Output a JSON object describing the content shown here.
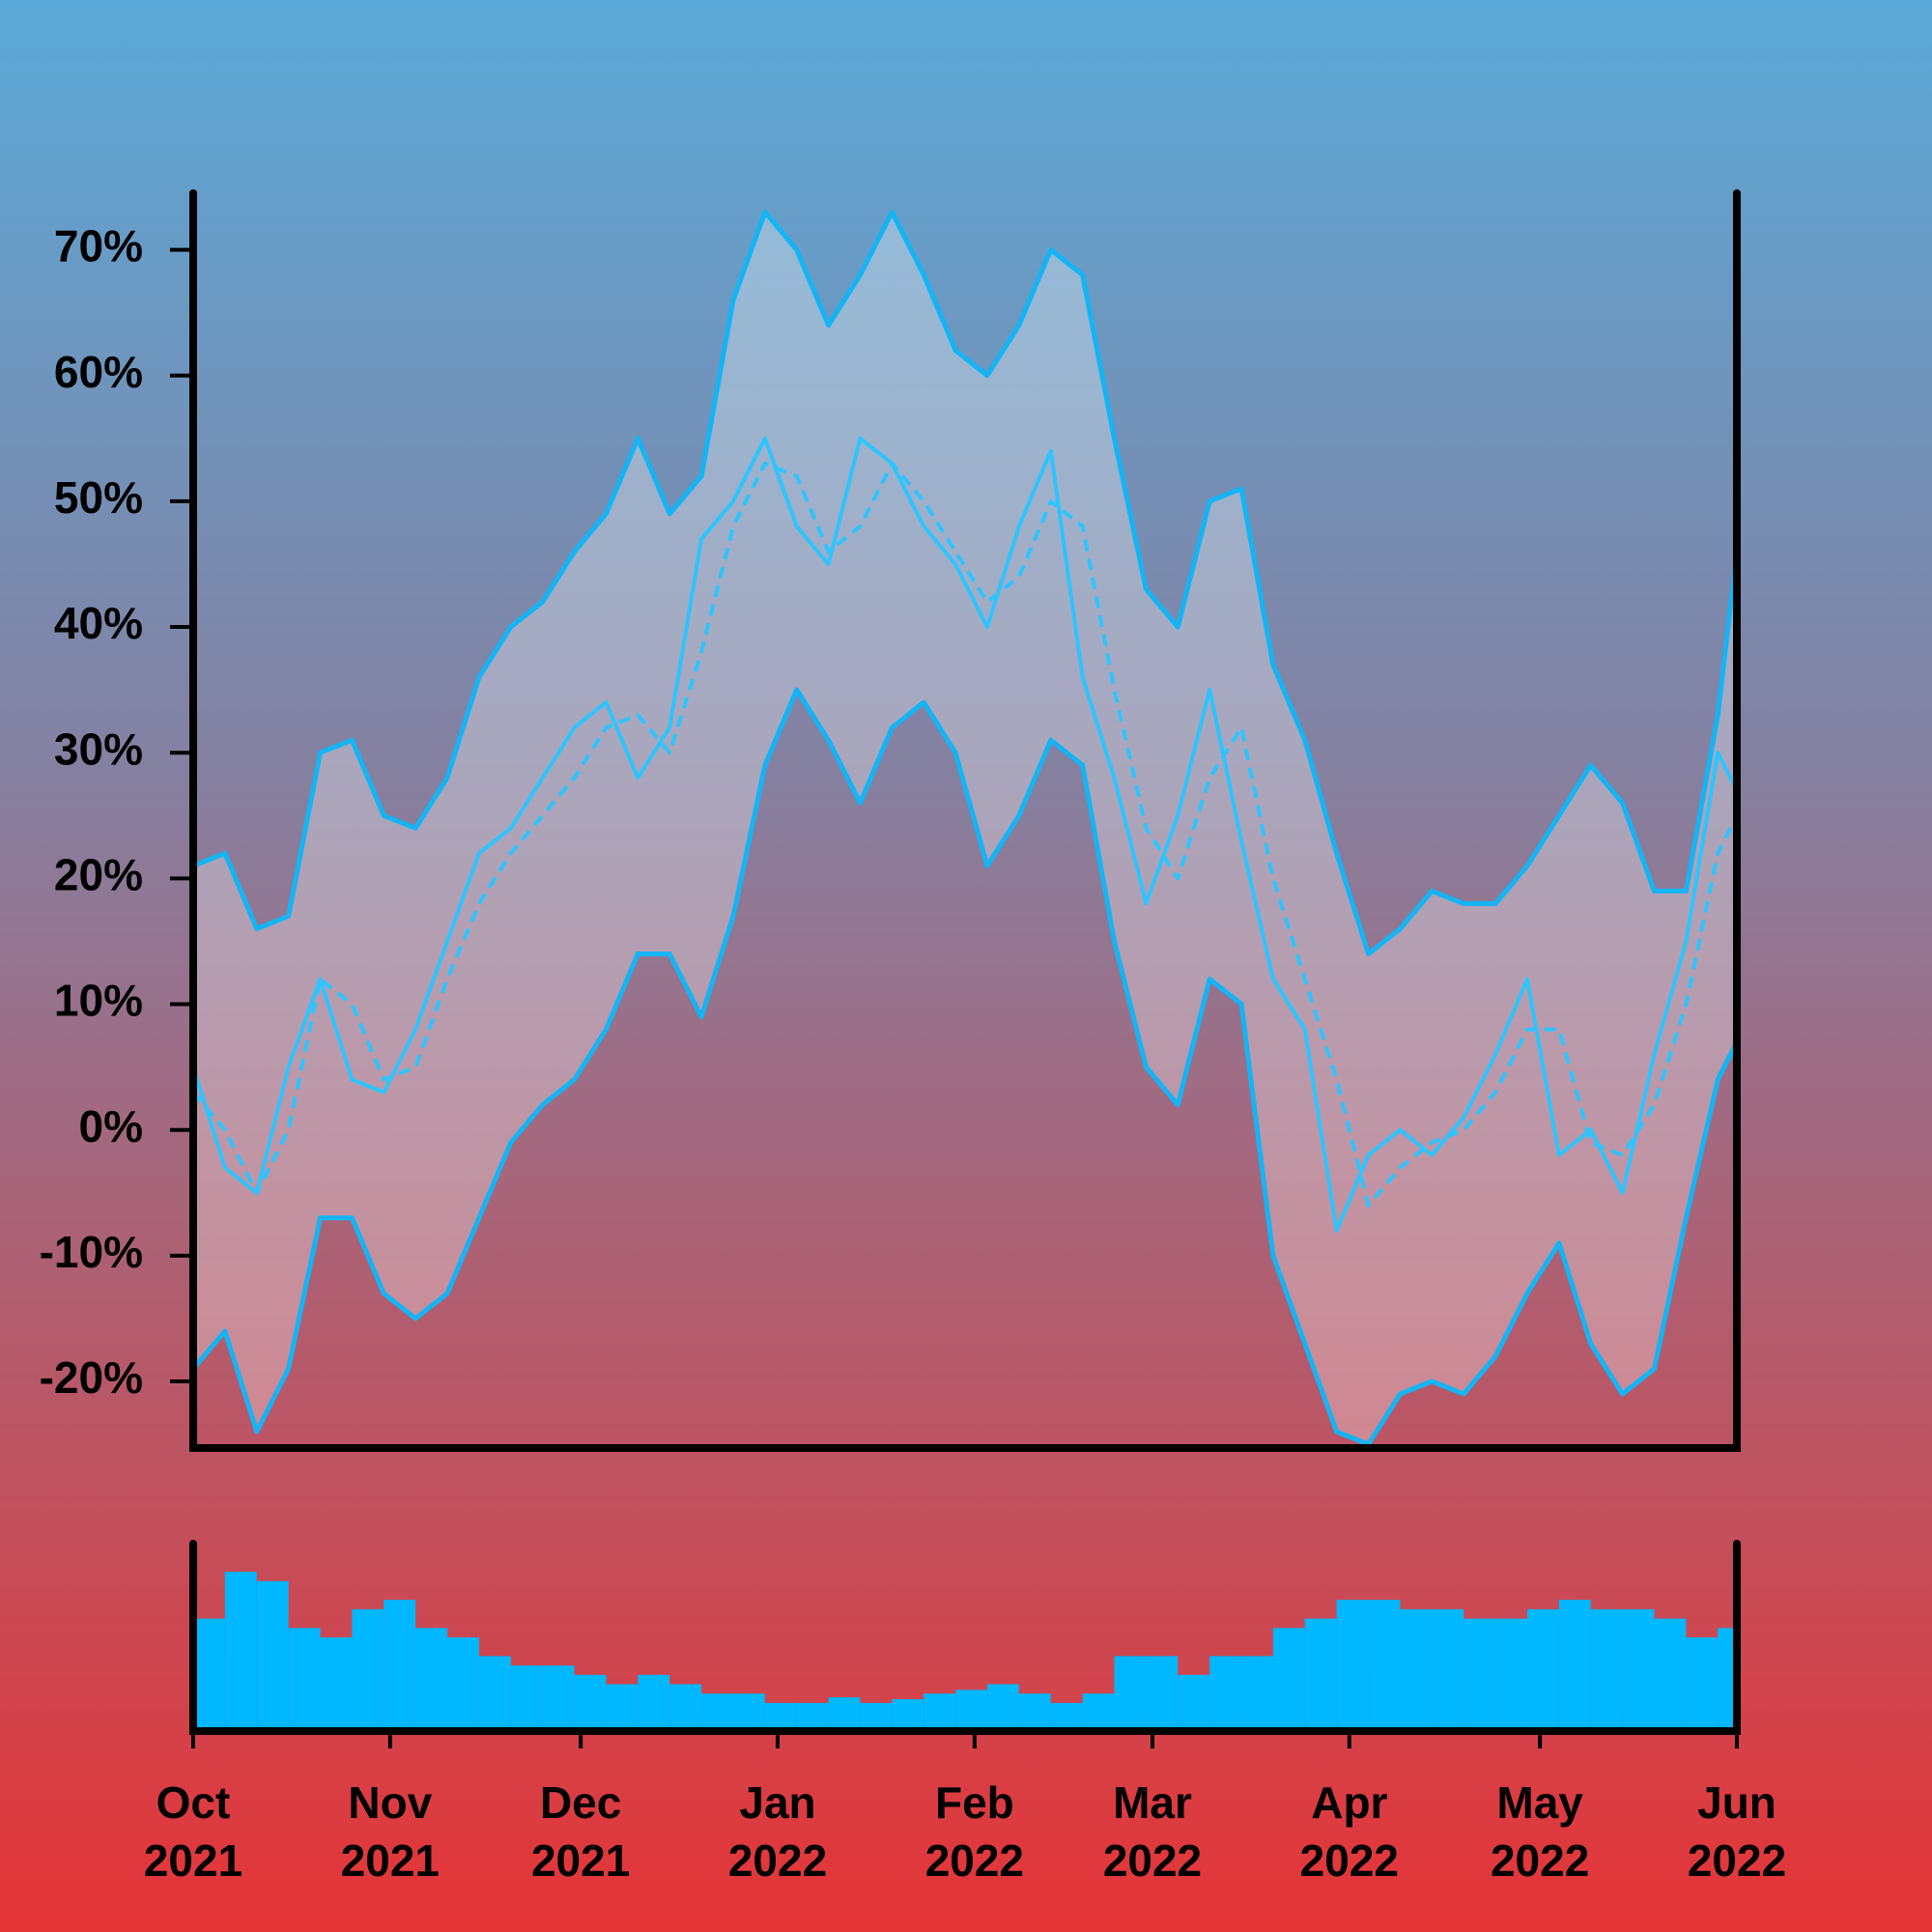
{
  "chart_data": {
    "type": "line",
    "x": [
      0,
      5,
      10,
      15,
      20,
      25,
      30,
      35,
      40,
      45,
      50,
      55,
      60,
      65,
      70,
      75,
      80,
      85,
      90,
      95,
      100,
      105,
      110,
      115,
      120,
      125,
      130,
      135,
      140,
      145,
      150,
      155,
      160,
      165,
      170,
      175,
      180,
      185,
      190,
      195,
      200,
      205,
      210,
      215,
      220,
      225,
      230,
      235,
      240,
      243
    ],
    "xlim": [
      0,
      243
    ],
    "xticks": [
      {
        "value": 0,
        "label": "Oct\n2021"
      },
      {
        "value": 31,
        "label": "Nov\n2021"
      },
      {
        "value": 61,
        "label": "Dec\n2021"
      },
      {
        "value": 92,
        "label": "Jan\n2022"
      },
      {
        "value": 123,
        "label": "Feb\n2022"
      },
      {
        "value": 151,
        "label": "Mar\n2022"
      },
      {
        "value": 182,
        "label": "Apr\n2022"
      },
      {
        "value": 212,
        "label": "May\n2022"
      },
      {
        "value": 243,
        "label": "Jun\n2022"
      }
    ],
    "ylim": [
      -25.3,
      74.5
    ],
    "yticks": [
      {
        "value": -20,
        "label": "-20%"
      },
      {
        "value": -10,
        "label": "-10%"
      },
      {
        "value": 0,
        "label": "0%"
      },
      {
        "value": 10,
        "label": "10%"
      },
      {
        "value": 20,
        "label": "20%"
      },
      {
        "value": 30,
        "label": "30%"
      },
      {
        "value": 40,
        "label": "40%"
      },
      {
        "value": 50,
        "label": "50%"
      },
      {
        "value": 60,
        "label": "60%"
      },
      {
        "value": 70,
        "label": "70%"
      }
    ],
    "series": [
      {
        "color": "#2ec4ff",
        "style": "solid",
        "values": [
          5,
          -3,
          -5,
          5,
          12,
          4,
          3,
          8,
          15,
          22,
          24,
          28,
          32,
          34,
          28,
          32,
          47,
          50,
          55,
          48,
          45,
          55,
          53,
          48,
          45,
          40,
          48,
          54,
          36,
          28,
          18,
          25,
          35,
          23,
          12,
          8,
          -8,
          -2,
          0,
          -2,
          1,
          6,
          12,
          -2,
          0,
          -5,
          6,
          15,
          30,
          27
        ]
      },
      {
        "color": "#2ec4ff",
        "style": "dashed",
        "values": [
          3,
          0,
          -5,
          0,
          12,
          10,
          4,
          5,
          12,
          18,
          22,
          25,
          28,
          32,
          33,
          30,
          38,
          48,
          53,
          52,
          46,
          48,
          53,
          50,
          46,
          42,
          44,
          50,
          48,
          35,
          24,
          20,
          28,
          32,
          20,
          12,
          4,
          -6,
          -3,
          -1,
          0,
          3,
          8,
          8,
          -1,
          -2,
          2,
          10,
          22,
          25
        ]
      }
    ],
    "band": {
      "color": "#14b4f5",
      "fill": "#ffffff",
      "upper": [
        21,
        22,
        16,
        17,
        30,
        31,
        25,
        24,
        28,
        36,
        40,
        42,
        46,
        49,
        55,
        49,
        52,
        66,
        73,
        70,
        64,
        68,
        73,
        68,
        62,
        60,
        64,
        70,
        68,
        55,
        43,
        40,
        50,
        51,
        37,
        31,
        22,
        14,
        16,
        19,
        18,
        18,
        21,
        25,
        29,
        26,
        19,
        19,
        33,
        46
      ],
      "lower": [
        -19,
        -16,
        -24,
        -19,
        -7,
        -7,
        -13,
        -15,
        -13,
        -7,
        -1,
        2,
        4,
        8,
        14,
        14,
        9,
        17,
        29,
        35,
        31,
        26,
        32,
        34,
        30,
        21,
        25,
        31,
        29,
        15,
        5,
        2,
        12,
        10,
        -10,
        -17,
        -24,
        -25,
        -21,
        -20,
        -21,
        -18,
        -13,
        -9,
        -17,
        -21,
        -19,
        -7,
        4,
        7
      ]
    },
    "volume": {
      "type": "bar",
      "color": "#00b8ff",
      "ylim": [
        0,
        100
      ],
      "values": [
        60,
        85,
        80,
        55,
        50,
        65,
        70,
        55,
        50,
        40,
        35,
        35,
        30,
        25,
        30,
        25,
        20,
        20,
        15,
        15,
        18,
        15,
        17,
        20,
        22,
        25,
        20,
        15,
        20,
        40,
        40,
        30,
        40,
        40,
        55,
        60,
        70,
        70,
        65,
        65,
        60,
        60,
        65,
        70,
        65,
        65,
        60,
        50,
        55,
        55
      ]
    }
  }
}
